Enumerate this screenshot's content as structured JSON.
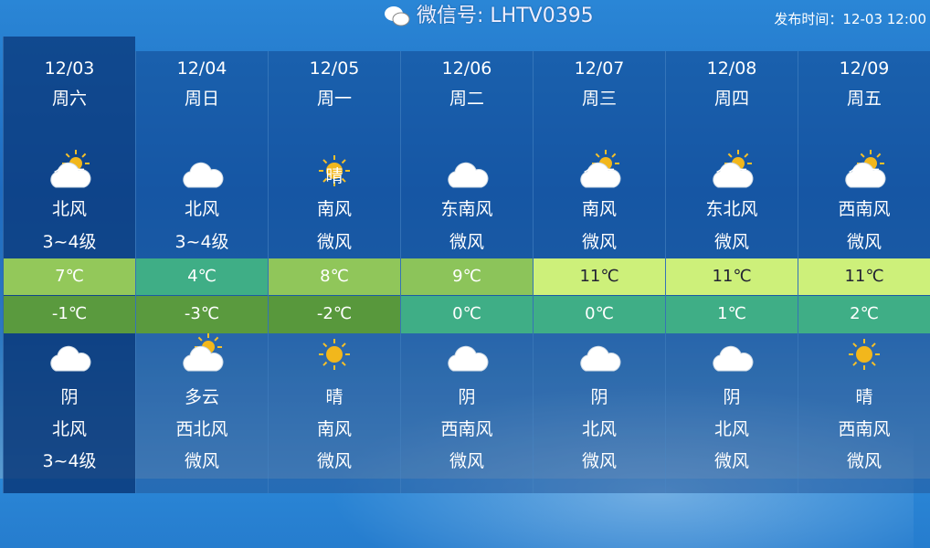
{
  "publish_time": "发布时间：12-03 12:00",
  "watermark": "微信号: LHTV0395",
  "colors": {
    "warm_high": "#93c85a",
    "cool_high": "#3fae86",
    "hot_high": "#cdf07a",
    "low_cold": "#5a9a3e",
    "low_mild": "#3fae86"
  },
  "days": [
    {
      "date": "12/03",
      "weekday": "周六",
      "day": {
        "icon": "partly-cloudy",
        "weather": "多云",
        "wind": "北风",
        "level": "3~4级"
      },
      "high": "7℃",
      "high_color": "#93c85a",
      "low": "-1℃",
      "low_color": "#5a9a3e",
      "night": {
        "icon": "cloudy",
        "weather": "阴",
        "wind": "北风",
        "level": "3~4级"
      }
    },
    {
      "date": "12/04",
      "weekday": "周日",
      "day": {
        "icon": "cloudy",
        "weather": "阴",
        "wind": "北风",
        "level": "3~4级"
      },
      "high": "4℃",
      "high_color": "#3fae86",
      "low": "-3℃",
      "low_color": "#5a9a3e",
      "night": {
        "icon": "partly-cloudy",
        "weather": "多云",
        "wind": "西北风",
        "level": "微风"
      }
    },
    {
      "date": "12/05",
      "weekday": "周一",
      "day": {
        "icon": "sunny",
        "weather": "晴",
        "wind": "南风",
        "level": "微风"
      },
      "high": "8℃",
      "high_color": "#90c65a",
      "low": "-2℃",
      "low_color": "#58983c",
      "night": {
        "icon": "sunny",
        "weather": "晴",
        "wind": "南风",
        "level": "微风"
      }
    },
    {
      "date": "12/06",
      "weekday": "周二",
      "day": {
        "icon": "cloudy",
        "weather": "阴",
        "wind": "东南风",
        "level": "微风"
      },
      "high": "9℃",
      "high_color": "#8cc45a",
      "low": "0℃",
      "low_color": "#3fae86",
      "night": {
        "icon": "cloudy",
        "weather": "阴",
        "wind": "西南风",
        "level": "微风"
      }
    },
    {
      "date": "12/07",
      "weekday": "周三",
      "day": {
        "icon": "partly-cloudy",
        "weather": "多云",
        "wind": "南风",
        "level": "微风"
      },
      "high": "11℃",
      "high_color": "#cdf07a",
      "low": "0℃",
      "low_color": "#3fae86",
      "night": {
        "icon": "cloudy",
        "weather": "阴",
        "wind": "北风",
        "level": "微风"
      }
    },
    {
      "date": "12/08",
      "weekday": "周四",
      "day": {
        "icon": "partly-cloudy",
        "weather": "多云",
        "wind": "东北风",
        "level": "微风"
      },
      "high": "11℃",
      "high_color": "#cdf07a",
      "low": "1℃",
      "low_color": "#3fae86",
      "night": {
        "icon": "cloudy",
        "weather": "阴",
        "wind": "北风",
        "level": "微风"
      }
    },
    {
      "date": "12/09",
      "weekday": "周五",
      "day": {
        "icon": "partly-cloudy",
        "weather": "多云",
        "wind": "西南风",
        "level": "微风"
      },
      "high": "11℃",
      "high_color": "#cdf07a",
      "low": "2℃",
      "low_color": "#3fae86",
      "night": {
        "icon": "sunny",
        "weather": "晴",
        "wind": "西南风",
        "level": "微风"
      }
    }
  ]
}
